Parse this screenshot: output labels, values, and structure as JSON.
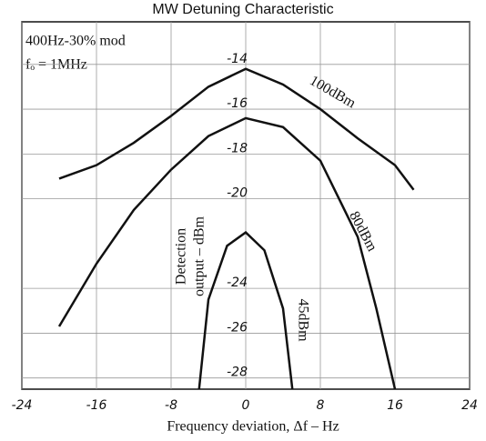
{
  "chart_data": {
    "type": "line",
    "title": "MW Detuning Characteristic",
    "xlabel": "Frequency deviation, Δf  –  Hz",
    "ylabel": [
      "Detection",
      "output  –  dBm"
    ],
    "annotations": [
      "400Hz-30% mod",
      "fₒ = 1MHz"
    ],
    "xlim": [
      -24,
      24
    ],
    "xticks": [
      -24,
      -16,
      -8,
      0,
      8,
      16,
      24
    ],
    "ylim": [
      -28.5,
      -12.1
    ],
    "yticks": [
      -14,
      -16,
      -18,
      -20,
      -24,
      -26,
      -28
    ],
    "grid": true,
    "series": [
      {
        "name": "100dBm",
        "color": "#111111",
        "x": [
          -20,
          -16,
          -12,
          -8,
          -4,
          0,
          4,
          8,
          12,
          16,
          18
        ],
        "values": [
          -19.1,
          -18.5,
          -17.5,
          -16.3,
          -15.0,
          -14.2,
          -14.9,
          -16.0,
          -17.3,
          -18.5,
          -19.6
        ]
      },
      {
        "name": "80dBm",
        "color": "#111111",
        "x": [
          -20,
          -16,
          -12,
          -8,
          -4,
          0,
          4,
          8,
          12,
          14,
          16
        ],
        "values": [
          -25.7,
          -22.9,
          -20.5,
          -18.7,
          -17.2,
          -16.4,
          -16.8,
          -18.3,
          -21.7,
          -24.9,
          -28.5
        ]
      },
      {
        "name": "45dBm",
        "color": "#111111",
        "x": [
          -5,
          -4,
          -2,
          0,
          2,
          4,
          5
        ],
        "values": [
          -28.5,
          -24.5,
          -22.1,
          -21.5,
          -22.3,
          -24.9,
          -28.5
        ]
      }
    ]
  }
}
